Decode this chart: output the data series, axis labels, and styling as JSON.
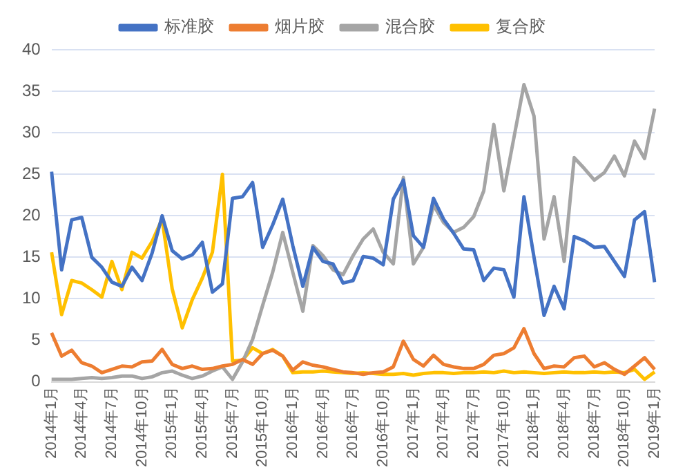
{
  "chart_data": {
    "type": "line",
    "categories": [
      "2014年1月",
      null,
      null,
      "2014年4月",
      null,
      null,
      "2014年7月",
      null,
      null,
      "2014年10月",
      null,
      null,
      "2015年1月",
      null,
      null,
      "2015年4月",
      null,
      null,
      "2015年7月",
      null,
      null,
      "2015年10月",
      null,
      null,
      "2016年1月",
      null,
      null,
      "2016年4月",
      null,
      null,
      "2016年7月",
      null,
      null,
      "2016年10月",
      null,
      null,
      "2017年1月",
      null,
      null,
      "2017年4月",
      null,
      null,
      "2017年7月",
      null,
      null,
      "2017年10月",
      null,
      null,
      "2018年1月",
      null,
      null,
      "2018年4月",
      null,
      null,
      "2018年7月",
      null,
      null,
      "2018年10月",
      null,
      null,
      "2019年1月"
    ],
    "series": [
      {
        "name": "标准胶",
        "color": "#4472c4",
        "values": [
          25.3,
          13.5,
          19.5,
          19.8,
          15,
          13.8,
          12,
          11.5,
          13.8,
          12.2,
          15.5,
          20,
          15.8,
          14.8,
          15.3,
          16.8,
          10.8,
          11.8,
          22.1,
          22.3,
          24,
          16.2,
          18.9,
          22,
          16.4,
          11.5,
          16.2,
          14.5,
          14.2,
          11.9,
          12.2,
          15.1,
          14.9,
          14.1,
          22,
          24.3,
          17.6,
          16.2,
          22.1,
          19.6,
          17.9,
          16,
          15.9,
          12.2,
          13.7,
          13.5,
          10.2,
          22.3,
          15,
          8,
          11.5,
          8.8,
          17.5,
          17,
          16.2,
          16.3,
          14.5,
          12.7,
          19.5,
          20.5,
          12
        ]
      },
      {
        "name": "烟片胶",
        "color": "#ed7d31",
        "values": [
          5.9,
          3.1,
          3.8,
          2.3,
          1.9,
          1.1,
          1.5,
          1.9,
          1.8,
          2.4,
          2.5,
          3.9,
          2.1,
          1.6,
          1.9,
          1.5,
          1.6,
          1.9,
          2.1,
          2.7,
          2.1,
          3.4,
          3.8,
          3.1,
          1.4,
          2.4,
          2,
          1.8,
          1.5,
          1.2,
          1.1,
          0.9,
          1.1,
          1.2,
          1.8,
          4.9,
          2.7,
          1.9,
          3.2,
          2.1,
          1.8,
          1.6,
          1.6,
          2.1,
          3.2,
          3.4,
          4.1,
          6.4,
          3.4,
          1.6,
          1.9,
          1.8,
          2.9,
          3.1,
          1.8,
          2.3,
          1.5,
          0.9,
          1.9,
          2.9,
          1.5
        ]
      },
      {
        "name": "混合胶",
        "color": "#a5a5a5",
        "values": [
          0.3,
          0.3,
          0.3,
          0.4,
          0.5,
          0.4,
          0.5,
          0.7,
          0.7,
          0.4,
          0.6,
          1.1,
          1.3,
          0.8,
          0.4,
          0.7,
          1.3,
          1.8,
          0.3,
          2.4,
          5.1,
          9.2,
          13.2,
          18,
          13.2,
          8.5,
          16.4,
          15.2,
          13.5,
          12.9,
          15.2,
          17.2,
          18.4,
          15.6,
          14.2,
          24.6,
          14.2,
          16.2,
          21.3,
          19.2,
          18,
          18.6,
          19.9,
          23,
          31,
          23,
          29.4,
          35.8,
          32,
          17.2,
          22.3,
          14.5,
          27,
          25.7,
          24.3,
          25.2,
          27.2,
          24.8,
          29,
          26.9,
          32.9
        ]
      },
      {
        "name": "复合胶",
        "color": "#ffc000",
        "values": [
          15.6,
          8.1,
          12.2,
          11.9,
          11.1,
          10.2,
          14.5,
          11.1,
          15.6,
          14.9,
          16.9,
          19.6,
          11.2,
          6.5,
          9.9,
          12.5,
          15.6,
          25,
          2.5,
          2.6,
          4.1,
          3.4,
          3.9,
          3.1,
          1.1,
          1.2,
          1.2,
          1.3,
          1.2,
          1.1,
          1,
          1.1,
          1,
          0.9,
          0.9,
          1,
          0.8,
          1,
          1.1,
          1.1,
          1,
          1.1,
          1.1,
          1.2,
          1.1,
          1.3,
          1.1,
          1.2,
          1.1,
          1,
          1.1,
          1.2,
          1.1,
          1.1,
          1.2,
          1.1,
          1.2,
          1.1,
          1.5,
          0.3,
          1.2
        ]
      }
    ],
    "ylim": [
      0,
      40
    ],
    "yticks": [
      0,
      5,
      10,
      15,
      20,
      25,
      30,
      35,
      40
    ],
    "grid": "y",
    "legend": "top",
    "marker": "none",
    "line_style": "solid"
  }
}
